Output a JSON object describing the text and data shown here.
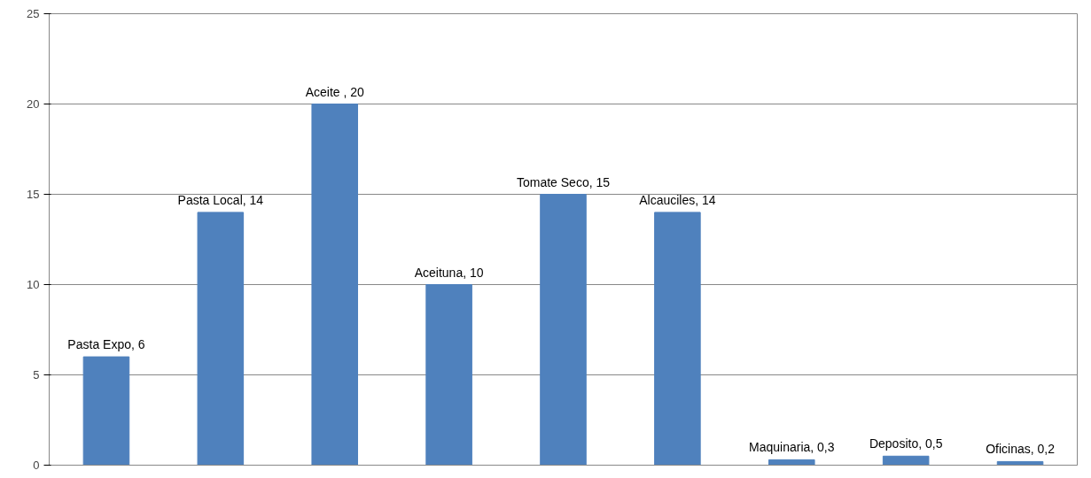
{
  "chart_data": {
    "type": "bar",
    "categories": [
      null,
      null,
      null,
      null,
      null,
      null,
      null,
      null,
      null
    ],
    "values": [
      6,
      14,
      20,
      10,
      15,
      14,
      0.3,
      0.5,
      0.2
    ],
    "value_labels": [
      "Pasta Expo, 6",
      "Pasta Local, 14",
      "Aceite , 20",
      "Aceituna, 10",
      "Tomate Seco, 15",
      "Alcauciles, 14",
      "Maquinaria, 0,3",
      "Deposito, 0,5",
      "Oficinas, 0,2"
    ],
    "color": "#4f81bd",
    "ylim": [
      0,
      25
    ],
    "yticks": [
      0,
      5,
      10,
      15,
      20,
      25
    ],
    "grid": "y",
    "tick_labels": "y"
  }
}
